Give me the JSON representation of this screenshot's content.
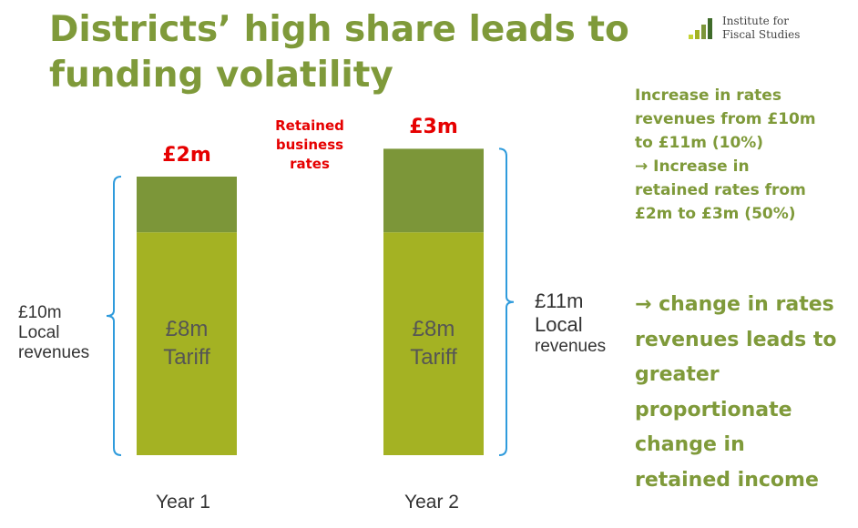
{
  "slide": {
    "title_line1": "Districts’ high share leads to",
    "title_line2": "funding volatility",
    "logo_line1": "Institute for",
    "logo_line2": "Fiscal Studies"
  },
  "notes": {
    "note1": [
      "Increase in rates",
      "revenues from £10m",
      "to £11m (10%)",
      "→ Increase in",
      "retained rates from",
      "£2m to £3m (50%)"
    ],
    "note2": [
      "→ change in rates",
      "revenues leads to",
      "greater",
      "proportionate",
      "change in",
      "retained income"
    ]
  },
  "colors": {
    "title_green": "#7f9a3a",
    "tariff_green": "#a4b223",
    "retained_green": "#7c9639",
    "red": "#e60000",
    "bracket_blue": "#2f9bdc"
  },
  "chart_data": {
    "type": "bar",
    "stacked": true,
    "categories": [
      "Year 1",
      "Year 2"
    ],
    "series": [
      {
        "name": "Tariff",
        "values": [
          8,
          8
        ],
        "labels": [
          "£8m\nTariff",
          "£8m\nTariff"
        ]
      },
      {
        "name": "Retained business rates",
        "values": [
          2,
          3
        ],
        "labels": [
          "£2m",
          "£3m"
        ]
      }
    ],
    "series_label": [
      "Retained",
      "business",
      "rates"
    ],
    "brackets": [
      {
        "category": "Year 1",
        "side": "left",
        "label": [
          "£10m",
          "Local",
          "revenues"
        ]
      },
      {
        "category": "Year 2",
        "side": "right",
        "label": [
          "£11m",
          "Local",
          "revenues"
        ]
      }
    ]
  }
}
